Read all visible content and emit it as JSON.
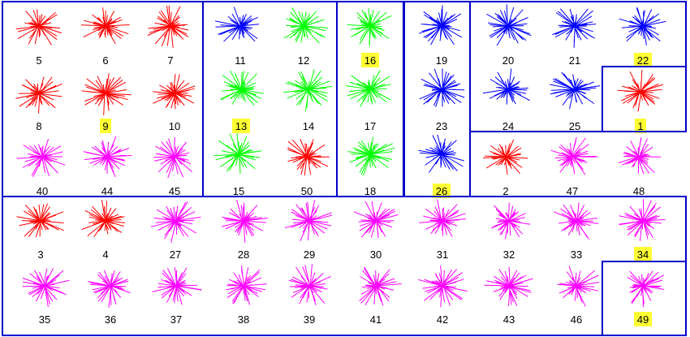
{
  "colors": {
    "red": "#ff0000",
    "blue": "#0000ff",
    "green": "#00ff00",
    "magenta": "#ff00ff",
    "border": "#0000cc",
    "highlight": "#ffff33"
  },
  "glyphs": [
    {
      "label": "5",
      "color": "red",
      "highlighted": false
    },
    {
      "label": "6",
      "color": "red",
      "highlighted": false
    },
    {
      "label": "7",
      "color": "red",
      "highlighted": false
    },
    {
      "label": "8",
      "color": "red",
      "highlighted": false
    },
    {
      "label": "9",
      "color": "red",
      "highlighted": true
    },
    {
      "label": "10",
      "color": "red",
      "highlighted": false
    },
    {
      "label": "40",
      "color": "magenta",
      "highlighted": false
    },
    {
      "label": "44",
      "color": "magenta",
      "highlighted": false
    },
    {
      "label": "45",
      "color": "magenta",
      "highlighted": false
    },
    {
      "label": "11",
      "color": "blue",
      "highlighted": false
    },
    {
      "label": "12",
      "color": "green",
      "highlighted": false
    },
    {
      "label": "13",
      "color": "green",
      "highlighted": true
    },
    {
      "label": "14",
      "color": "green",
      "highlighted": false
    },
    {
      "label": "15",
      "color": "green",
      "highlighted": false
    },
    {
      "label": "50",
      "color": "red",
      "highlighted": false
    },
    {
      "label": "16",
      "color": "green",
      "highlighted": true
    },
    {
      "label": "17",
      "color": "green",
      "highlighted": false
    },
    {
      "label": "18",
      "color": "green",
      "highlighted": false
    },
    {
      "label": "19",
      "color": "blue",
      "highlighted": false
    },
    {
      "label": "23",
      "color": "blue",
      "highlighted": false
    },
    {
      "label": "26",
      "color": "blue",
      "highlighted": true
    },
    {
      "label": "20",
      "color": "blue",
      "highlighted": false
    },
    {
      "label": "21",
      "color": "blue",
      "highlighted": false
    },
    {
      "label": "22",
      "color": "blue",
      "highlighted": true
    },
    {
      "label": "24",
      "color": "blue",
      "highlighted": false
    },
    {
      "label": "25",
      "color": "blue",
      "highlighted": false
    },
    {
      "label": "1",
      "color": "red",
      "highlighted": true
    },
    {
      "label": "2",
      "color": "red",
      "highlighted": false
    },
    {
      "label": "47",
      "color": "magenta",
      "highlighted": false
    },
    {
      "label": "48",
      "color": "magenta",
      "highlighted": false
    },
    {
      "label": "3",
      "color": "red",
      "highlighted": false
    },
    {
      "label": "4",
      "color": "red",
      "highlighted": false
    },
    {
      "label": "27",
      "color": "magenta",
      "highlighted": false
    },
    {
      "label": "28",
      "color": "magenta",
      "highlighted": false
    },
    {
      "label": "29",
      "color": "magenta",
      "highlighted": false
    },
    {
      "label": "30",
      "color": "magenta",
      "highlighted": false
    },
    {
      "label": "31",
      "color": "magenta",
      "highlighted": false
    },
    {
      "label": "32",
      "color": "magenta",
      "highlighted": false
    },
    {
      "label": "33",
      "color": "magenta",
      "highlighted": false
    },
    {
      "label": "34",
      "color": "magenta",
      "highlighted": true
    },
    {
      "label": "35",
      "color": "magenta",
      "highlighted": false
    },
    {
      "label": "36",
      "color": "magenta",
      "highlighted": false
    },
    {
      "label": "37",
      "color": "magenta",
      "highlighted": false
    },
    {
      "label": "38",
      "color": "magenta",
      "highlighted": false
    },
    {
      "label": "39",
      "color": "magenta",
      "highlighted": false
    },
    {
      "label": "41",
      "color": "magenta",
      "highlighted": false
    },
    {
      "label": "42",
      "color": "magenta",
      "highlighted": false
    },
    {
      "label": "43",
      "color": "magenta",
      "highlighted": false
    },
    {
      "label": "46",
      "color": "magenta",
      "highlighted": false
    },
    {
      "label": "49",
      "color": "magenta",
      "highlighted": true
    }
  ]
}
